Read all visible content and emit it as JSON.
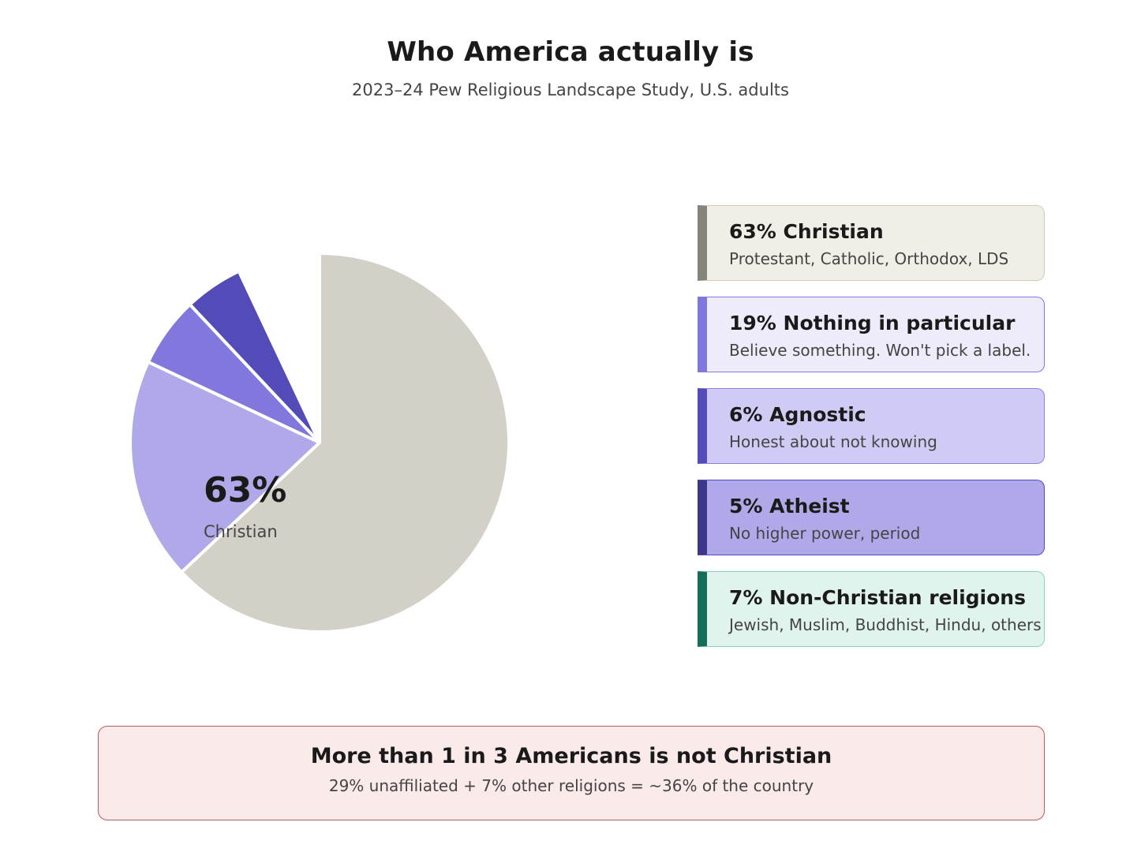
{
  "title": "Who America actually is",
  "subtitle": "2023–24 Pew Religious Landscape Study, U.S. adults",
  "pie_label": {
    "value": "63%",
    "category": "Christian"
  },
  "chart_data": {
    "type": "pie",
    "title": "Who America actually is",
    "subtitle": "2023–24 Pew Religious Landscape Study, U.S. adults",
    "slices": [
      {
        "label": "Christian",
        "value": 63,
        "color": "#d3d0c7"
      },
      {
        "label": "Nothing in particular",
        "value": 19,
        "color": "#b0a9e9"
      },
      {
        "label": "Agnostic",
        "value": 6,
        "color": "#8177dd"
      },
      {
        "label": "Atheist",
        "value": 5,
        "color": "#534bb8"
      },
      {
        "label": "Non-Christian religions",
        "value": 7,
        "color": "#ffffff"
      }
    ],
    "slice_border_color": "#ffffff",
    "legend_position": "right"
  },
  "legend": [
    {
      "title": "63% Christian",
      "description": "Protestant, Catholic, Orthodox, LDS",
      "bg": "#f1eee8",
      "accent": "#85837a",
      "border": "#d0ccc2"
    },
    {
      "title": "19% Nothing in particular",
      "description": "Believe something. Won't pick a label.",
      "bg": "#eeecfb",
      "accent": "#8177dd",
      "border": "#8177dd"
    },
    {
      "title": "6% Agnostic",
      "description": "Honest about not knowing",
      "bg": "#d0cbf5",
      "accent": "#534bb8",
      "border": "#8a82dc"
    },
    {
      "title": "5% Atheist",
      "description": "No higher power, period",
      "bg": "#b0a9e9",
      "accent": "#3e3789",
      "border": "#534bb8"
    },
    {
      "title": "7% Non-Christian religions",
      "description": "Jewish, Muslim, Buddhist, Hindu, others",
      "bg": "#e0f3ec",
      "accent": "#136e55",
      "border": "#8fd0b8"
    }
  ],
  "callout": {
    "headline": "More than 1 in 3 Americans is not Christian",
    "detail": "29% unaffiliated + 7% other religions = ~36% of the country"
  }
}
